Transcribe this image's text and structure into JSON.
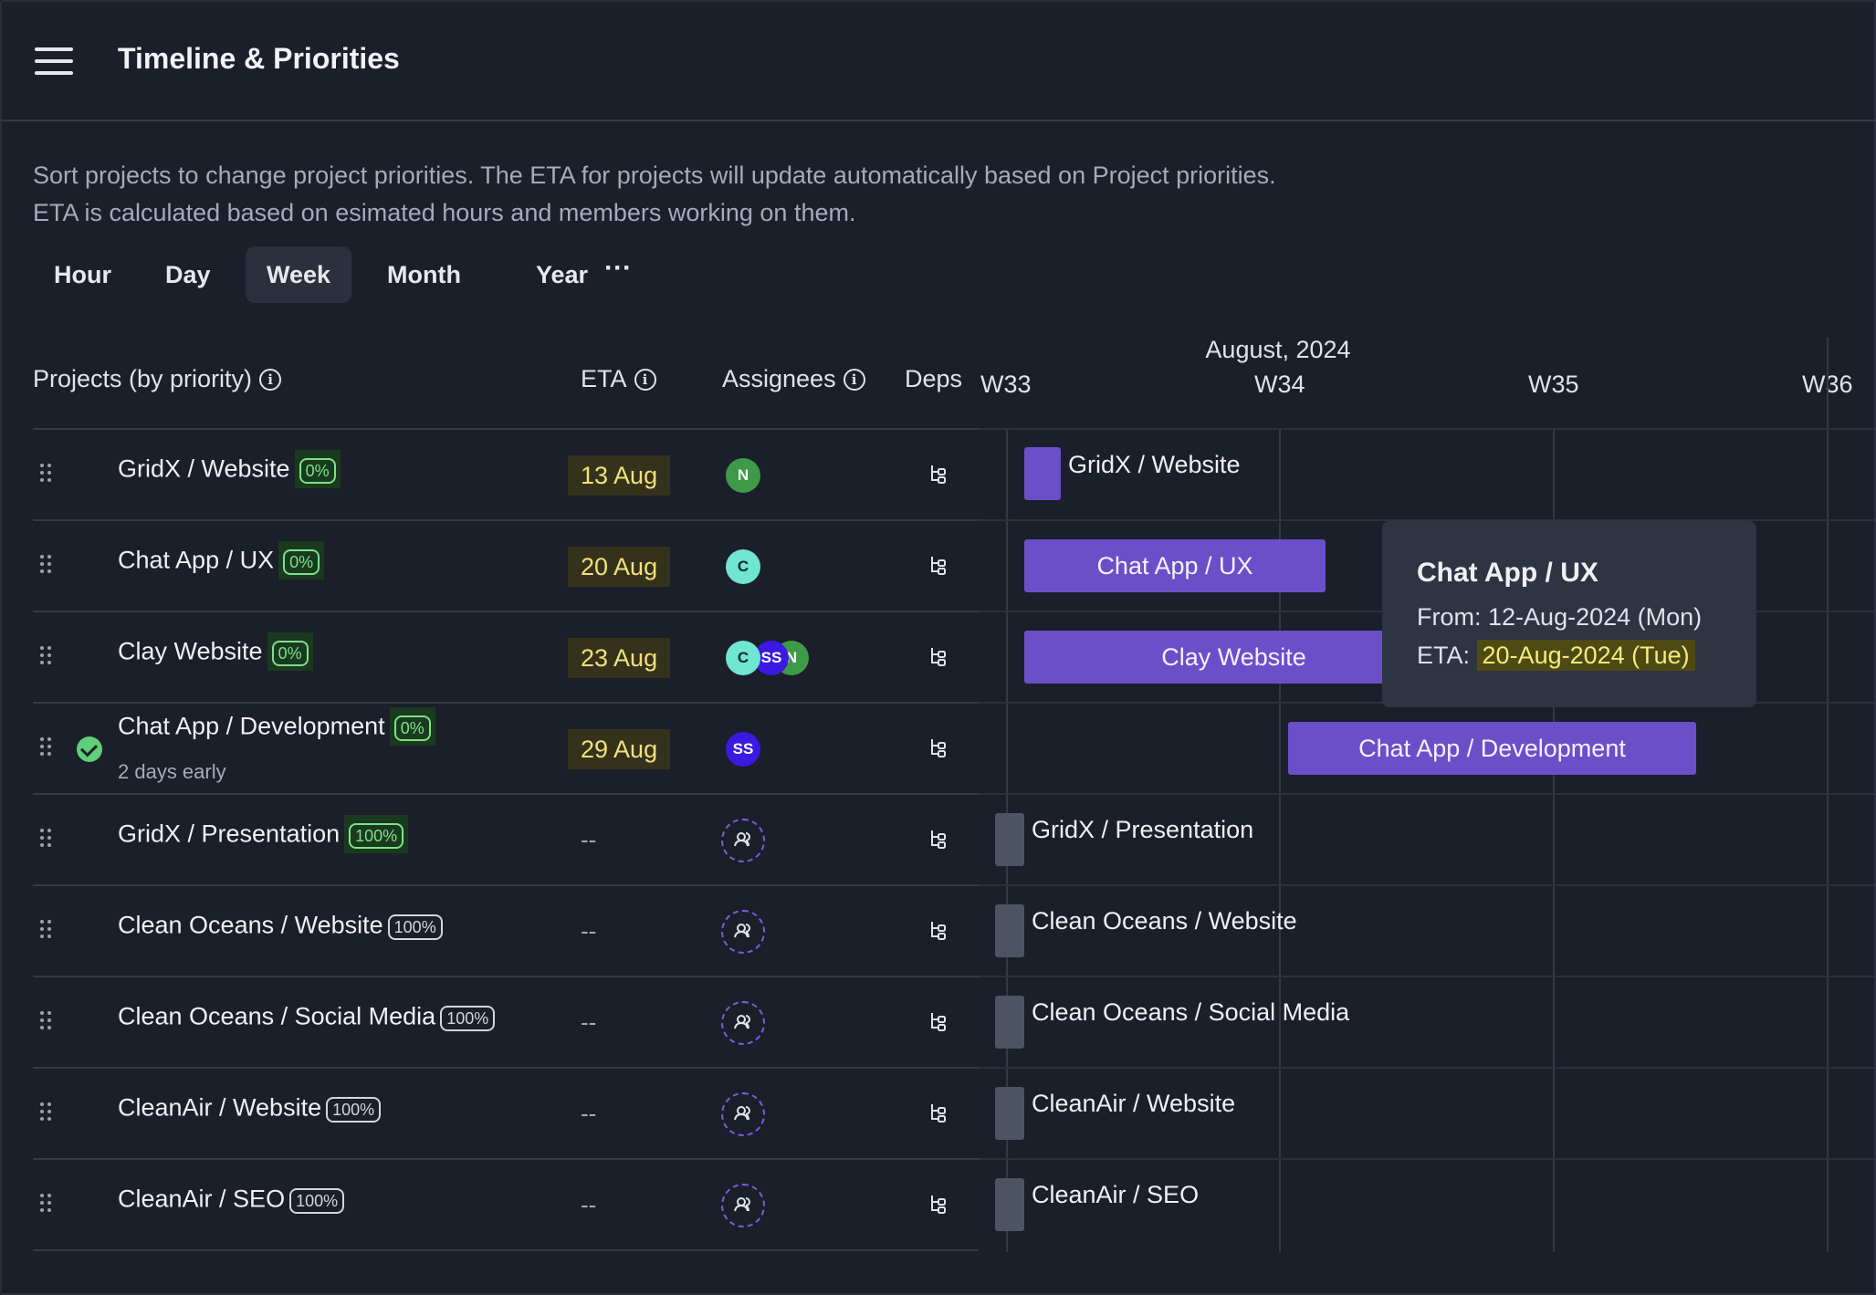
{
  "header": {
    "title": "Timeline & Priorities"
  },
  "description": {
    "line1": "Sort projects to change project priorities. The ETA for projects will update automatically based on Project priorities.",
    "line2": "ETA is calculated based on esimated hours and members working on them."
  },
  "view_tabs": [
    "Hour",
    "Day",
    "Week",
    "Month",
    "Year"
  ],
  "active_view": "Week",
  "more_label": "···",
  "columns": {
    "projects": "Projects (by priority)",
    "eta": "ETA",
    "assignees": "Assignees",
    "deps": "Deps"
  },
  "timeline": {
    "month": "August, 2024",
    "weeks": [
      "W33",
      "W34",
      "W35",
      "W36"
    ]
  },
  "projects": [
    {
      "name": "GridX / Website",
      "progress": "0%",
      "eta": "13 Aug",
      "assignees": [
        "N"
      ]
    },
    {
      "name": "Chat App / UX",
      "progress": "0%",
      "eta": "20 Aug",
      "assignees": [
        "C"
      ]
    },
    {
      "name": "Clay Website",
      "progress": "0%",
      "eta": "23 Aug",
      "assignees": [
        "C",
        "SS",
        "N"
      ]
    },
    {
      "name": "Chat App / Development",
      "progress": "0%",
      "eta": "29 Aug",
      "assignees": [
        "SS"
      ],
      "status": "2 days early"
    },
    {
      "name": "GridX / Presentation",
      "progress": "100%",
      "eta": "--",
      "assignees": []
    },
    {
      "name": "Clean Oceans / Website",
      "progress": "100%",
      "eta": "--",
      "assignees": []
    },
    {
      "name": "Clean Oceans / Social Media",
      "progress": "100%",
      "eta": "--",
      "assignees": []
    },
    {
      "name": "CleanAir / Website",
      "progress": "100%",
      "eta": "--",
      "assignees": []
    },
    {
      "name": "CleanAir / SEO",
      "progress": "100%",
      "eta": "--",
      "assignees": []
    }
  ],
  "tooltip": {
    "title": "Chat App / UX",
    "from_label": "From:",
    "from_value": "12-Aug-2024 (Mon)",
    "eta_label": "ETA:",
    "eta_value": "20-Aug-2024 (Tue)"
  },
  "colors": {
    "bar": "#6b4fc9",
    "bar_done": "#4c5363",
    "avatar_N": "#3f9a48",
    "avatar_C": "#6fe5d2",
    "avatar_SS": "#3a1ae0",
    "eta_highlight": "#f3e07a",
    "progress_badge": "#7fe08a"
  }
}
